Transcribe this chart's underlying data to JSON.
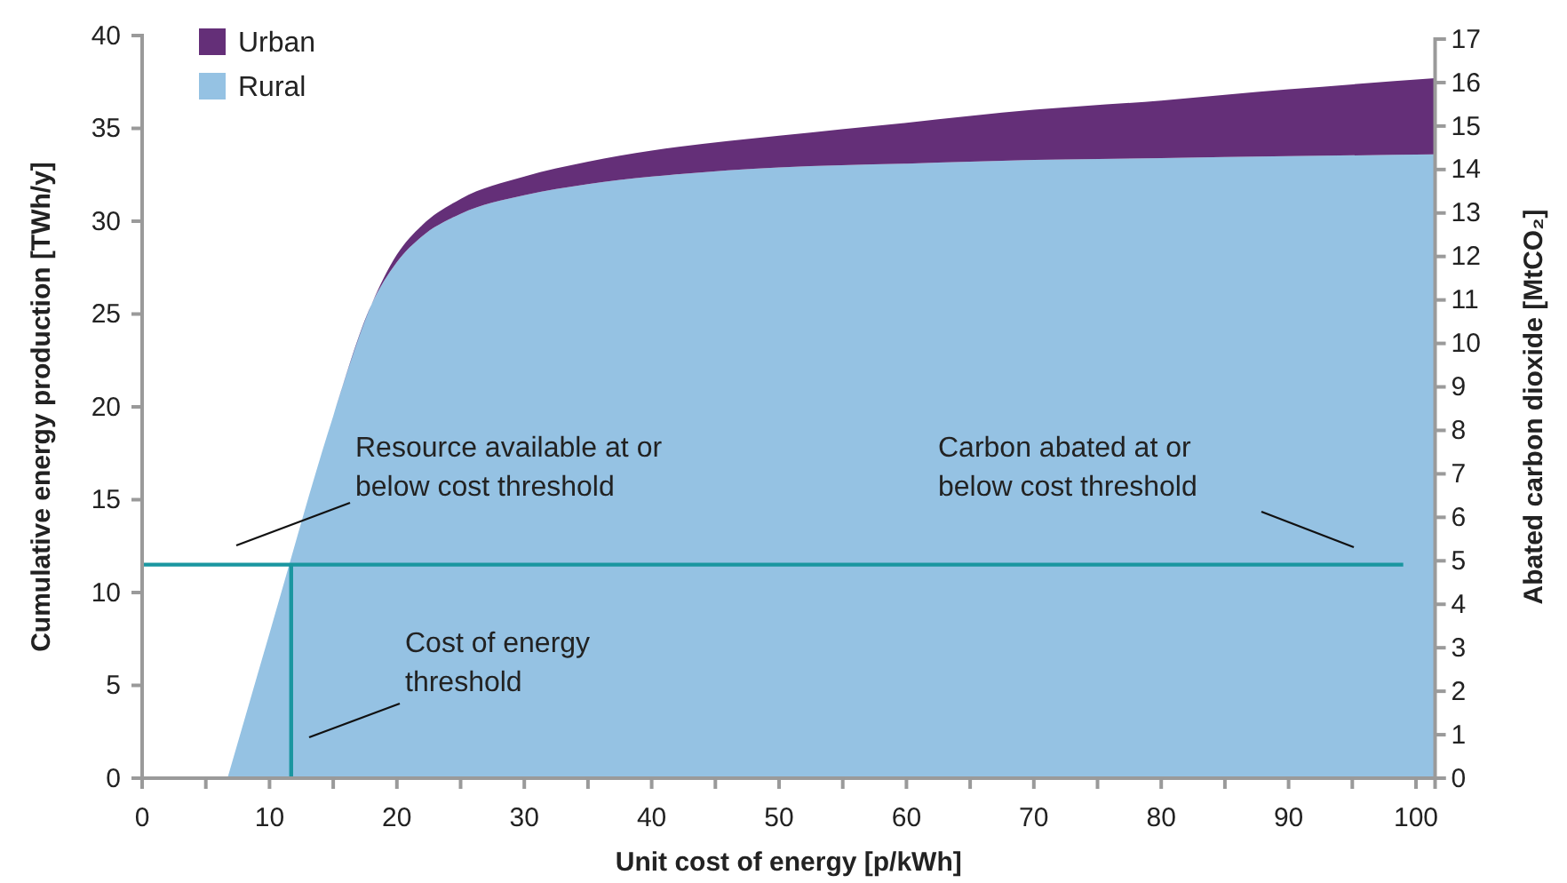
{
  "chart_data": {
    "type": "area",
    "stacked": true,
    "xlabel": "Unit cost of energy [p/kWh]",
    "ylabel": "Cumulative energy production [TWh/y]",
    "y2label": "Abated carbon dioxide  [MtCO₂]",
    "x": [
      6.7,
      10,
      15,
      18,
      20,
      22,
      25,
      30,
      35,
      40,
      50,
      60,
      70,
      80,
      90,
      101.5
    ],
    "series": [
      {
        "name": "Rural",
        "color": "#95c2e3",
        "values": [
          0,
          7.8,
          19.5,
          25.5,
          27.8,
          29.2,
          30.4,
          31.4,
          32.0,
          32.4,
          32.9,
          33.1,
          33.3,
          33.4,
          33.5,
          33.6
        ]
      },
      {
        "name": "Urban",
        "color": "#642f78",
        "values": [
          0,
          0,
          0,
          0,
          0.4,
          0.6,
          0.8,
          1.0,
          1.2,
          1.4,
          1.7,
          2.2,
          2.7,
          3.1,
          3.6,
          4.1
        ]
      },
      {
        "type": "line",
        "color": "#1a96a0",
        "x": [
          0,
          99
        ],
        "values": [
          11.5,
          11.5
        ]
      },
      {
        "type": "line",
        "color": "#1a96a0",
        "x": [
          11.7,
          11.7
        ],
        "values": [
          0,
          11.5
        ]
      }
    ],
    "xlim": [
      0,
      101.5
    ],
    "xticks": [
      0,
      {
        "value": 5,
        "label": null
      },
      10,
      {
        "value": 15,
        "label": null
      },
      20,
      {
        "value": 25,
        "label": null
      },
      30,
      {
        "value": 35,
        "label": null
      },
      40,
      {
        "value": 45,
        "label": null
      },
      50,
      {
        "value": 55,
        "label": null
      },
      60,
      {
        "value": 65,
        "label": null
      },
      70,
      {
        "value": 75,
        "label": null
      },
      80,
      {
        "value": 85,
        "label": null
      },
      90,
      {
        "value": 95,
        "label": null
      },
      100
    ],
    "ylim": [
      0,
      40
    ],
    "yticks": [
      0,
      5,
      10,
      15,
      20,
      25,
      30,
      35,
      40
    ],
    "y2lim": [
      0,
      17
    ],
    "y2ticks": [
      0,
      1,
      2,
      3,
      4,
      5,
      6,
      7,
      8,
      9,
      10,
      11,
      12,
      13,
      14,
      15,
      16,
      17
    ],
    "legend": "top left",
    "annotations": [
      "Resource available at or\nbelow cost threshold",
      "Carbon abated at or\nbelow cost threshold",
      "Cost of energy\nthreshold"
    ]
  }
}
